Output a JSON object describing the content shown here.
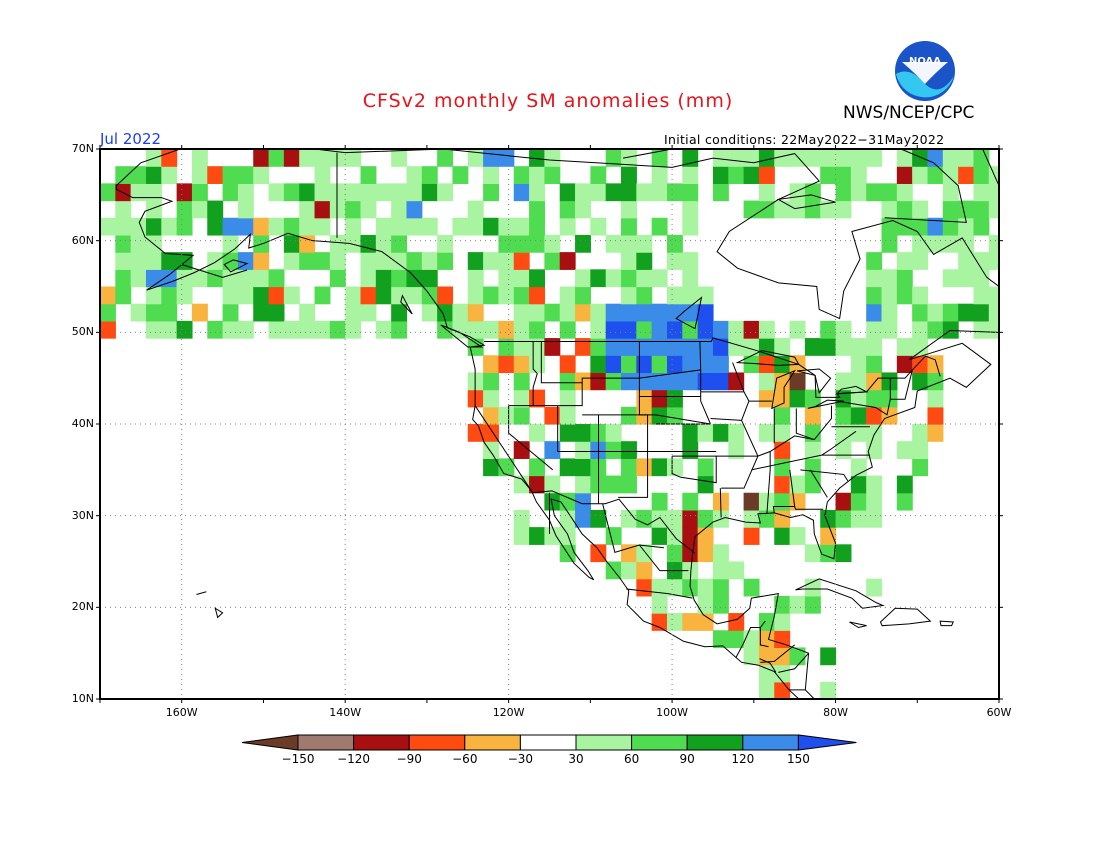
{
  "header": {
    "title": "CFSv2 monthly SM anomalies (mm)",
    "agency": "NWS/NCEP/CPC",
    "month": "Jul 2022",
    "initial_conditions": "Initial conditions: 22May2022−31May2022",
    "logo_text": "NOAA"
  },
  "map": {
    "lon_range": [
      -170,
      -60
    ],
    "lat_range": [
      10,
      70
    ],
    "lat_ticks": [
      "70N",
      "60N",
      "50N",
      "40N",
      "30N",
      "20N",
      "10N"
    ],
    "lon_ticks": [
      "160W",
      "140W",
      "120W",
      "100W",
      "80W",
      "60W"
    ]
  },
  "legend": {
    "labels": [
      "−150",
      "−120",
      "−90",
      "−60",
      "−30",
      "30",
      "60",
      "90",
      "120",
      "150"
    ],
    "colors": [
      "#6b3b28",
      "#a07a70",
      "#a80f10",
      "#ff4a12",
      "#f8b43e",
      "#ffffff",
      "#a8f4a0",
      "#50dc50",
      "#11a11e",
      "#3a8ce8",
      "#1e50f0"
    ]
  },
  "colors": {
    "title": "#e8121b",
    "month": "#1a3cff",
    "noaa_blue": "#1b54c8",
    "noaa_cyan": "#34c8f0"
  }
}
